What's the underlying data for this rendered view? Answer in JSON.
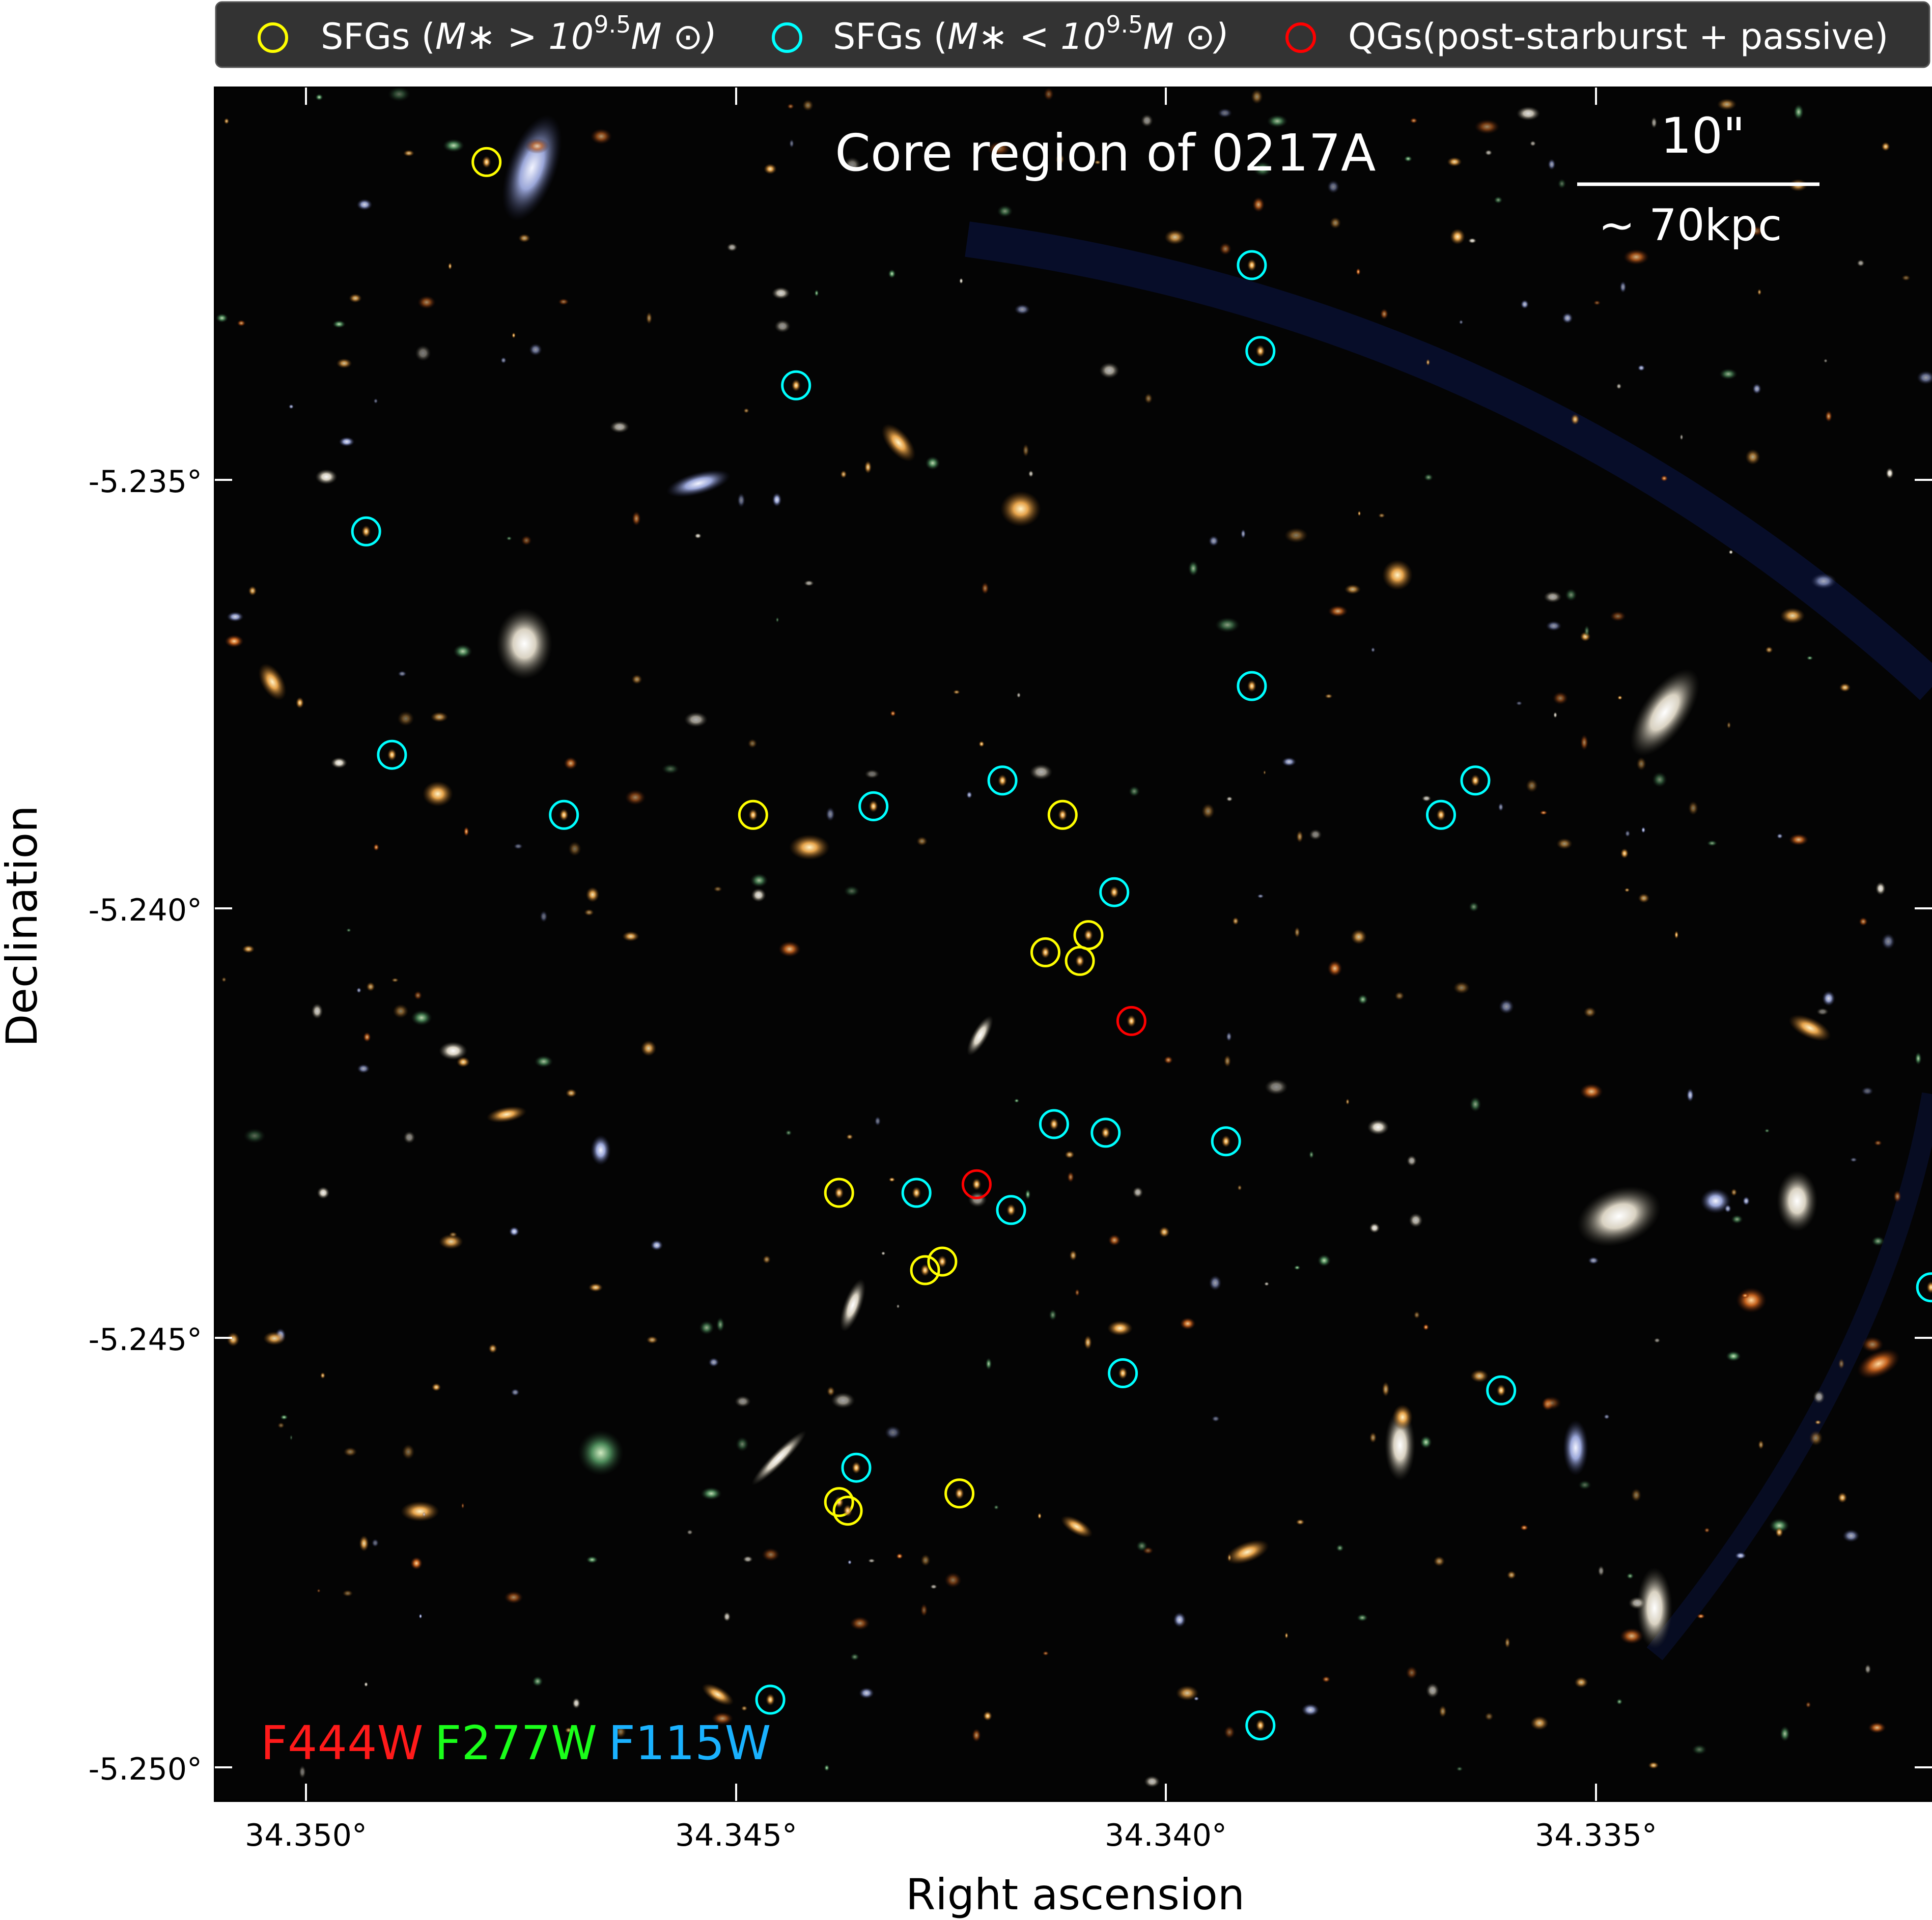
{
  "legend": {
    "entries": [
      {
        "id": "sfg-high",
        "label_pre": "SFGs (",
        "label_math": "M∗ > 10",
        "label_sup": "9.5",
        "label_post": "M ⊙)",
        "color": "#ffff00"
      },
      {
        "id": "sfg-low",
        "label_pre": "SFGs (",
        "label_math": "M∗ < 10",
        "label_sup": "9.5",
        "label_post": "M ⊙)",
        "color": "#00ffff"
      },
      {
        "id": "qg",
        "label_pre": "QGs(post-starburst + passive)",
        "label_math": "",
        "label_sup": "",
        "label_post": "",
        "color": "#ff0000"
      }
    ]
  },
  "image": {
    "title": "Core region of 0217A",
    "scale_bar_top": "10\"",
    "scale_bar_bottom": "~ 70kpc",
    "filters": [
      {
        "name": "F444W",
        "color": "#ff1a1a"
      },
      {
        "name": "F277W",
        "color": "#1aff1a"
      },
      {
        "name": "F115W",
        "color": "#1ab2ff"
      }
    ]
  },
  "axes": {
    "xlabel": "Right ascension",
    "ylabel": "Declination",
    "x_ticks": [
      "34.350°",
      "34.345°",
      "34.340°",
      "34.335°"
    ],
    "y_ticks": [
      "-5.235°",
      "-5.240°",
      "-5.245°",
      "-5.250°"
    ]
  },
  "chart_data": {
    "type": "scatter",
    "xlabel": "Right ascension",
    "ylabel": "Declination",
    "x_axis_inverted": true,
    "xlim": [
      34.3507,
      34.3306
    ],
    "ylim": [
      -5.2504,
      -5.2305
    ],
    "series": [
      {
        "name": "SFGs (M∗ > 10^9.5 M⊙)",
        "color": "#ffff00",
        "points": [
          [
            34.3479,
            -5.2313
          ],
          [
            34.3448,
            -5.2389
          ],
          [
            34.3412,
            -5.2389
          ],
          [
            34.3409,
            -5.2403
          ],
          [
            34.3414,
            -5.2405
          ],
          [
            34.341,
            -5.2406
          ],
          [
            34.3438,
            -5.2433
          ],
          [
            34.3428,
            -5.2442
          ],
          [
            34.3426,
            -5.2441
          ],
          [
            34.3438,
            -5.2469
          ],
          [
            34.3437,
            -5.247
          ],
          [
            34.3424,
            -5.2468
          ]
        ]
      },
      {
        "name": "SFGs (M∗ < 10^9.5 M⊙)",
        "color": "#00ffff",
        "points": [
          [
            34.339,
            -5.2325
          ],
          [
            34.3389,
            -5.2335
          ],
          [
            34.3443,
            -5.2339
          ],
          [
            34.3493,
            -5.2356
          ],
          [
            34.339,
            -5.2374
          ],
          [
            34.349,
            -5.2382
          ],
          [
            34.3419,
            -5.2385
          ],
          [
            34.347,
            -5.2389
          ],
          [
            34.3434,
            -5.2388
          ],
          [
            34.3364,
            -5.2385
          ],
          [
            34.3368,
            -5.2389
          ],
          [
            34.3406,
            -5.2398
          ],
          [
            34.3413,
            -5.2425
          ],
          [
            34.3407,
            -5.2426
          ],
          [
            34.3393,
            -5.2427
          ],
          [
            34.3429,
            -5.2433
          ],
          [
            34.3418,
            -5.2435
          ],
          [
            34.3311,
            -5.2444
          ],
          [
            34.3405,
            -5.2454
          ],
          [
            34.3361,
            -5.2456
          ],
          [
            34.3436,
            -5.2465
          ],
          [
            34.3446,
            -5.2492
          ],
          [
            34.3389,
            -5.2495
          ]
        ]
      },
      {
        "name": "QGs(post-starburst + passive)",
        "color": "#ff0000",
        "points": [
          [
            34.3404,
            -5.2413
          ],
          [
            34.3422,
            -5.2432
          ]
        ]
      }
    ]
  }
}
